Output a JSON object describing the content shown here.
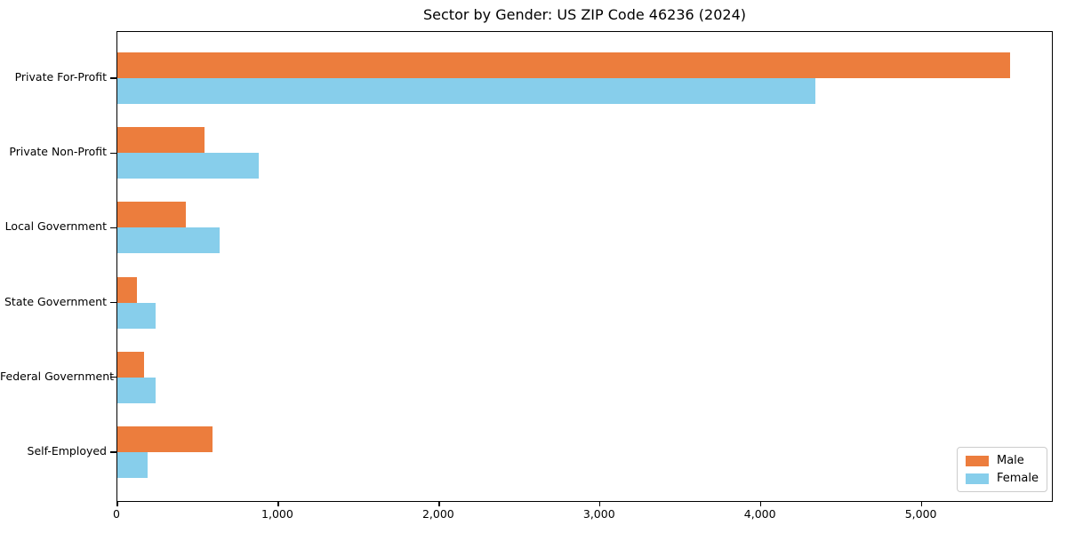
{
  "chart_data": {
    "type": "bar",
    "orientation": "horizontal",
    "title": "Sector by Gender: US ZIP Code 46236 (2024)",
    "categories": [
      "Private For-Profit",
      "Private Non-Profit",
      "Local Government",
      "State Government",
      "Federal Government",
      "Self-Employed"
    ],
    "series": [
      {
        "name": "Male",
        "color": "#ec7d3d",
        "values": [
          5550,
          540,
          425,
          120,
          165,
          590
        ]
      },
      {
        "name": "Female",
        "color": "#87ceeb",
        "values": [
          4340,
          880,
          635,
          240,
          240,
          190
        ]
      }
    ],
    "xlabel": "",
    "ylabel": "",
    "xlim": [
      0,
      5820
    ],
    "xticks": [
      0,
      1000,
      2000,
      3000,
      4000,
      5000
    ],
    "xtick_labels": [
      "0",
      "1,000",
      "2,000",
      "3,000",
      "4,000",
      "5,000"
    ],
    "grid": false,
    "legend": {
      "position": "lower right",
      "entries": [
        "Male",
        "Female"
      ]
    },
    "colors": {
      "background": "#ffffff",
      "frame": "#000000",
      "text": "#000000",
      "legend_border": "#cccccc"
    }
  }
}
